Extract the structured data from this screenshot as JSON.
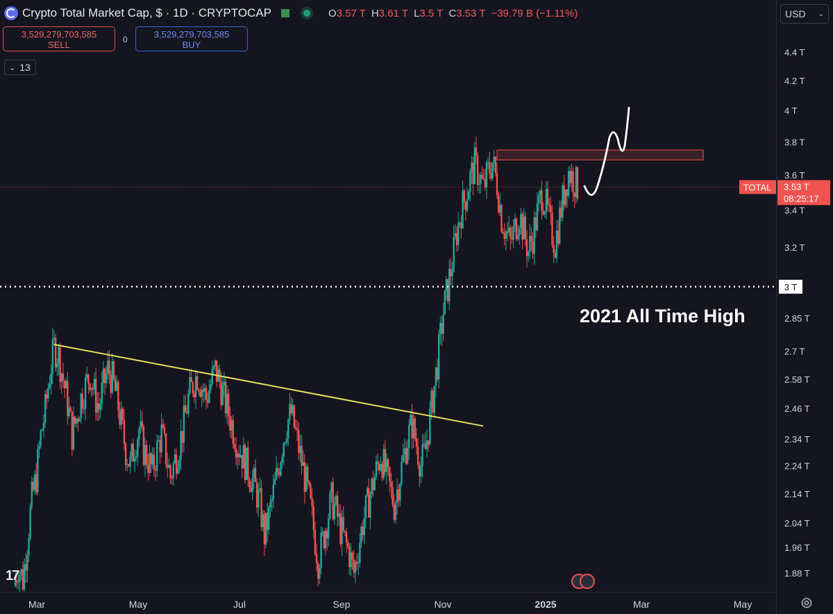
{
  "header": {
    "title": "Crypto Total Market Cap, $ · 1D · CRYPTOCAP",
    "ohlc": [
      {
        "k": "O",
        "v": "3.57 T"
      },
      {
        "k": "H",
        "v": "3.61 T"
      },
      {
        "k": "L",
        "v": "3.5 T"
      },
      {
        "k": "C",
        "v": "3.53 T"
      },
      {
        "k": "",
        "v": "−39.79 B (−1.11%)"
      }
    ]
  },
  "trade": {
    "sell_value": "3,529,279,703,585",
    "sell_label": "SELL",
    "buy_value": "3,529,279,703,585",
    "buy_label": "BUY",
    "spread": "0"
  },
  "indicator_count": "13",
  "currency": "USD",
  "annotation": "2021 All Time High",
  "price_tag": {
    "symbol": "TOTAL",
    "price": "3.53 T",
    "countdown": "08:25:17"
  },
  "level_tag": "3 T",
  "colors": {
    "background": "#151520",
    "up": "#26a69a",
    "down": "#ef5350",
    "trendline": "#e8e05a",
    "resistance": "#ef5350"
  },
  "chart_data": {
    "type": "candlestick",
    "y_scale": "log",
    "y_ticks": [
      "4.4 T",
      "4.2 T",
      "4 T",
      "3.8 T",
      "3.6 T",
      "3.4 T",
      "3.2 T",
      "2.85 T",
      "2.7 T",
      "2.58 T",
      "2.46 T",
      "2.34 T",
      "2.24 T",
      "2.14 T",
      "2.04 T",
      "1.96 T",
      "1.88 T"
    ],
    "y_tick_values": [
      4.4,
      4.2,
      4.0,
      3.8,
      3.6,
      3.4,
      3.2,
      2.85,
      2.7,
      2.58,
      2.46,
      2.34,
      2.24,
      2.14,
      2.04,
      1.96,
      1.88
    ],
    "x_ticks": [
      "Mar",
      "May",
      "Jul",
      "Sep",
      "Nov",
      "2025",
      "Mar",
      "May"
    ],
    "ylim": [
      1.82,
      4.6
    ],
    "last_price": 3.53,
    "level_line": 3.0,
    "resistance_zone": [
      3.69,
      3.75
    ],
    "trendline": {
      "from": {
        "date": "Mar",
        "value": 2.73
      },
      "to": {
        "date": "Nov",
        "value": 2.4
      }
    },
    "series": [
      {
        "name": "TOTAL",
        "closes": [
          1.84,
          1.9,
          1.86,
          1.98,
          2.12,
          2.2,
          2.35,
          2.45,
          2.6,
          2.72,
          2.68,
          2.58,
          2.48,
          2.36,
          2.42,
          2.5,
          2.55,
          2.6,
          2.52,
          2.46,
          2.55,
          2.62,
          2.58,
          2.5,
          2.4,
          2.3,
          2.24,
          2.32,
          2.38,
          2.3,
          2.26,
          2.22,
          2.3,
          2.36,
          2.28,
          2.2,
          2.26,
          2.32,
          2.4,
          2.5,
          2.56,
          2.6,
          2.55,
          2.5,
          2.56,
          2.62,
          2.57,
          2.5,
          2.44,
          2.38,
          2.32,
          2.28,
          2.24,
          2.2,
          2.16,
          2.1,
          2.0,
          2.06,
          2.14,
          2.22,
          2.32,
          2.4,
          2.44,
          2.36,
          2.28,
          2.2,
          2.12,
          2.02,
          1.92,
          1.98,
          2.05,
          2.12,
          2.08,
          2.02,
          1.98,
          1.94,
          1.88,
          1.96,
          2.04,
          2.1,
          2.16,
          2.22,
          2.28,
          2.22,
          2.16,
          2.1,
          2.18,
          2.26,
          2.34,
          2.4,
          2.32,
          2.24,
          2.3,
          2.42,
          2.55,
          2.7,
          2.88,
          3.0,
          3.12,
          3.28,
          3.4,
          3.48,
          3.58,
          3.66,
          3.6,
          3.52,
          3.62,
          3.68,
          3.55,
          3.36,
          3.28,
          3.22,
          3.3,
          3.38,
          3.28,
          3.18,
          3.26,
          3.38,
          3.5,
          3.42,
          3.3,
          3.22,
          3.36,
          3.5,
          3.62,
          3.58,
          3.53
        ]
      }
    ]
  }
}
